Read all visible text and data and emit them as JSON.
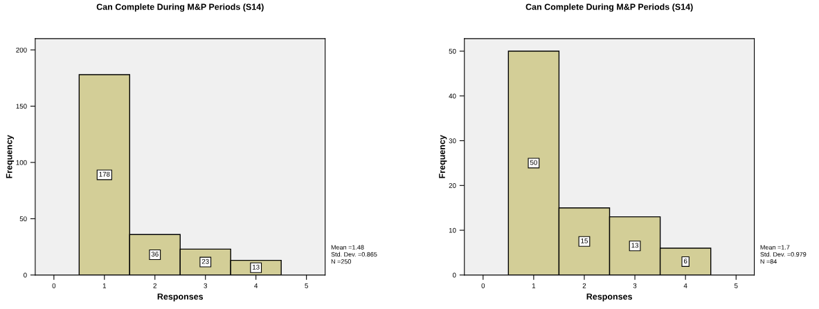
{
  "chart_data": [
    {
      "type": "histogram",
      "title": "Can Complete During M&P Periods (S14)",
      "xlabel": "Responses",
      "ylabel": "Frequency",
      "bins": [
        0.5,
        1.5,
        2.5,
        3.5,
        4.5
      ],
      "values": [
        178,
        36,
        23,
        13
      ],
      "color": "#d3ce97",
      "data_labels": true,
      "xlim": [
        -0.37,
        5.37
      ],
      "xticks": [
        0,
        1,
        2,
        3,
        4,
        5
      ],
      "ylim": [
        0,
        210
      ],
      "yticks": [
        0,
        50,
        100,
        150,
        200
      ],
      "grid": false,
      "legend": false,
      "annotations": [
        "Mean =1.48",
        "Std. Dev. =0.865",
        "N =250"
      ]
    },
    {
      "type": "histogram",
      "title": "Can Complete During M&P Periods (S14)",
      "xlabel": "Responses",
      "ylabel": "Frequency",
      "bins": [
        0.5,
        1.5,
        2.5,
        3.5,
        4.5
      ],
      "values": [
        50,
        15,
        13,
        6
      ],
      "color": "#d3ce97",
      "data_labels": true,
      "xlim": [
        -0.37,
        5.36
      ],
      "xticks": [
        0,
        1,
        2,
        3,
        4,
        5
      ],
      "ylim": [
        0,
        52.8
      ],
      "yticks": [
        0,
        10,
        20,
        30,
        40,
        50
      ],
      "grid": false,
      "legend": false,
      "annotations": [
        "Mean =1.7",
        "Std. Dev. =0.979",
        "N =84"
      ]
    }
  ]
}
